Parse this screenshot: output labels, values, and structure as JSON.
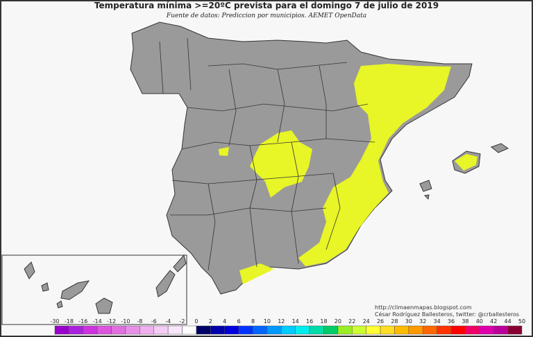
{
  "header": {
    "title": "Temperatura mínima >=20ºC prevista para el domingo 7 de julio de 2019",
    "subtitle": "Fuente de datos: Prediccion por municipios. AEMET OpenData"
  },
  "credits": {
    "url": "http://climaenmapas.blogspot.com",
    "author": "César Rodríguez Ballesteros, twitter: @crballesteros"
  },
  "legend": {
    "ticks": [
      -30,
      -18,
      -16,
      -14,
      -12,
      -10,
      -8,
      -6,
      -4,
      -2,
      0,
      2,
      4,
      6,
      8,
      10,
      12,
      14,
      16,
      18,
      20,
      22,
      24,
      26,
      28,
      30,
      32,
      34,
      36,
      38,
      40,
      42,
      44,
      50
    ],
    "colors": [
      "#9900cc",
      "#aa22dd",
      "#cc33dd",
      "#dd55dd",
      "#e070e0",
      "#e890e8",
      "#f0b0f0",
      "#f5ccf5",
      "#fae6fa",
      "#ffffff",
      "#000066",
      "#0000aa",
      "#0000dd",
      "#0033ff",
      "#0066ff",
      "#0099ff",
      "#00ccff",
      "#00eeee",
      "#00ddaa",
      "#00cc66",
      "#99ee22",
      "#ccff33",
      "#ffff33",
      "#ffdd22",
      "#ffbb00",
      "#ff9900",
      "#ff6600",
      "#ff3300",
      "#ff0000",
      "#ee0066",
      "#dd00aa",
      "#bb0099",
      "#880033"
    ]
  }
}
